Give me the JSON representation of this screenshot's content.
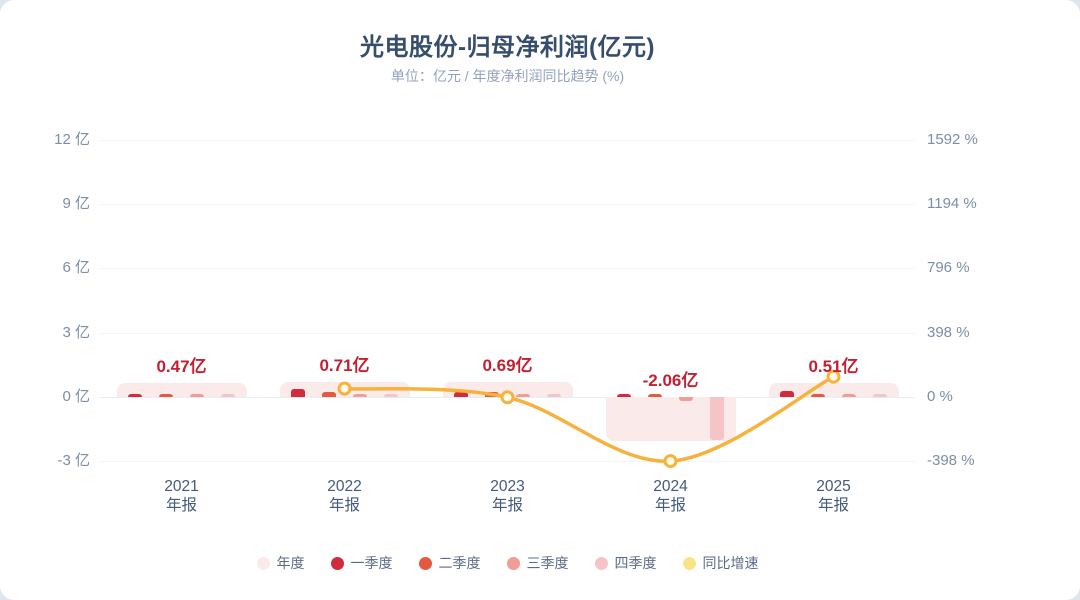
{
  "page": {
    "background": "#dde6ef",
    "card_background": "#ffffff"
  },
  "header": {
    "title": "光电股份-归母净利润(亿元)",
    "subtitle": "单位：亿元 / 年度净利润同比趋势 (%)"
  },
  "chart_data": {
    "type": "bar",
    "subtype": "grouped-bars-with-yoy-line",
    "title": "光电股份-归母净利润(亿元)",
    "categories": [
      {
        "line1": "2021",
        "line2": "年报"
      },
      {
        "line1": "2022",
        "line2": "年报"
      },
      {
        "line1": "2023",
        "line2": "年报"
      },
      {
        "line1": "2024",
        "line2": "年报"
      },
      {
        "line1": "2025",
        "line2": "年报"
      }
    ],
    "series": [
      {
        "name": "年度",
        "type": "bar",
        "role": "annual",
        "color": "#fbeaea",
        "values": [
          0.47,
          0.71,
          0.69,
          -2.06,
          0.51
        ],
        "labels": [
          "0.47亿",
          "0.71亿",
          "0.69亿",
          "-2.06亿",
          "0.51亿"
        ]
      },
      {
        "name": "一季度",
        "type": "bar",
        "role": "quarter",
        "color": "#d22b3c",
        "values": [
          0.08,
          0.37,
          0.24,
          0.02,
          0.28
        ]
      },
      {
        "name": "二季度",
        "type": "bar",
        "role": "quarter",
        "color": "#e25b40",
        "values": [
          0.14,
          0.22,
          0.21,
          0.12,
          0.13
        ]
      },
      {
        "name": "三季度",
        "type": "bar",
        "role": "quarter",
        "color": "#f19c94",
        "values": [
          0.12,
          0.06,
          0.13,
          -0.2,
          0.06
        ]
      },
      {
        "name": "四季度",
        "type": "bar",
        "role": "quarter",
        "color": "#f6c4c6",
        "values": [
          0.13,
          0.06,
          0.11,
          -2.0,
          0.04
        ]
      },
      {
        "name": "同比增速",
        "type": "line",
        "axis": "right",
        "color": "#f7b23e",
        "marker_fill": "#fffbe9",
        "values": [
          null,
          51.06,
          -2.82,
          -398.55,
          124.75
        ]
      }
    ],
    "left_axis": {
      "unit": "亿",
      "ticks": [
        "12 亿",
        "9 亿",
        "6 亿",
        "3 亿",
        "0 亿",
        "-3 亿"
      ],
      "values": [
        12,
        9,
        6,
        3,
        0,
        -3
      ],
      "max": 12,
      "min": -3
    },
    "right_axis": {
      "unit": "%",
      "ticks": [
        "1592 %",
        "1194 %",
        "796 %",
        "398 %",
        "0 %",
        "-398 %"
      ],
      "values": [
        1592,
        1194,
        796,
        398,
        0,
        -398
      ],
      "max": 1592,
      "min": -398
    },
    "grid": true,
    "legend_position": "bottom"
  },
  "legend": {
    "items": [
      {
        "id": "annual",
        "label": "年度",
        "color": "#fbeaea"
      },
      {
        "id": "q1",
        "label": "一季度",
        "color": "#d22b3c"
      },
      {
        "id": "q2",
        "label": "二季度",
        "color": "#e25b40"
      },
      {
        "id": "q3",
        "label": "三季度",
        "color": "#f19c94"
      },
      {
        "id": "q4",
        "label": "四季度",
        "color": "#f6c4c6"
      },
      {
        "id": "yoy-growth",
        "label": "同比增速",
        "color": "#fae387"
      }
    ]
  }
}
